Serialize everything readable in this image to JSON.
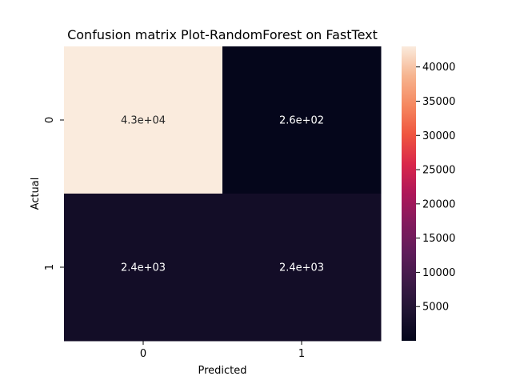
{
  "chart_data": {
    "type": "heatmap",
    "title": "Confusion matrix Plot-RandomForest on FastText",
    "xlabel": "Predicted",
    "ylabel": "Actual",
    "x_categories": [
      "0",
      "1"
    ],
    "y_categories": [
      "0",
      "1"
    ],
    "values": [
      [
        43000,
        260
      ],
      [
        2400,
        2400
      ]
    ],
    "annotations": [
      [
        "4.3e+04",
        "2.6e+02"
      ],
      [
        "2.4e+03",
        "2.4e+03"
      ]
    ],
    "colormap": "rocket",
    "colorbar": {
      "min": 0,
      "max": 43000,
      "ticks": [
        5000,
        10000,
        15000,
        20000,
        25000,
        30000,
        35000,
        40000
      ],
      "tick_labels": [
        "5000",
        "10000",
        "15000",
        "20000",
        "25000",
        "30000",
        "35000",
        "40000"
      ]
    }
  }
}
